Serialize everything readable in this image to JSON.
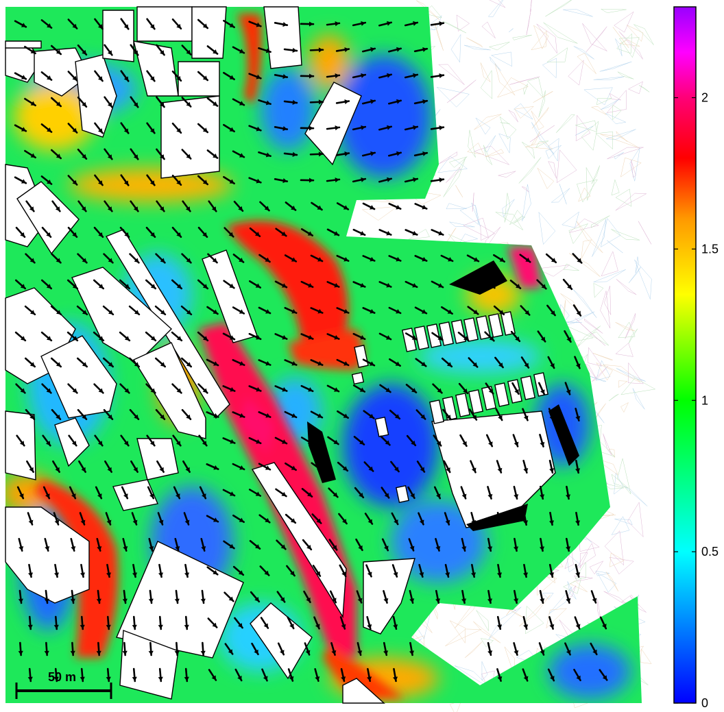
{
  "figure": {
    "kind": "flow-speed map with velocity vectors over urban buildings",
    "colormap": {
      "min": 0,
      "max": 2.3,
      "stops": [
        {
          "value": 0.0,
          "color": "#0000ff"
        },
        {
          "value": 0.5,
          "color": "#00ffff"
        },
        {
          "value": 1.0,
          "color": "#00ff00"
        },
        {
          "value": 1.35,
          "color": "#ffff00"
        },
        {
          "value": 1.6,
          "color": "#ff9900"
        },
        {
          "value": 1.8,
          "color": "#ff0000"
        },
        {
          "value": 2.0,
          "color": "#ff0077"
        },
        {
          "value": 2.15,
          "color": "#ff00ff"
        },
        {
          "value": 2.3,
          "color": "#9900ff"
        }
      ],
      "ticks": [
        "0",
        "0.5",
        "1",
        "1.5",
        "2"
      ],
      "tick_values": [
        0,
        0.5,
        1,
        1.5,
        2
      ]
    },
    "scale_bar": {
      "label": "50 m"
    },
    "colors": {
      "building_fill": "#ffffff",
      "building_stroke": "#000000",
      "vector": "#000000",
      "mesh": "#c8d0e8"
    }
  }
}
